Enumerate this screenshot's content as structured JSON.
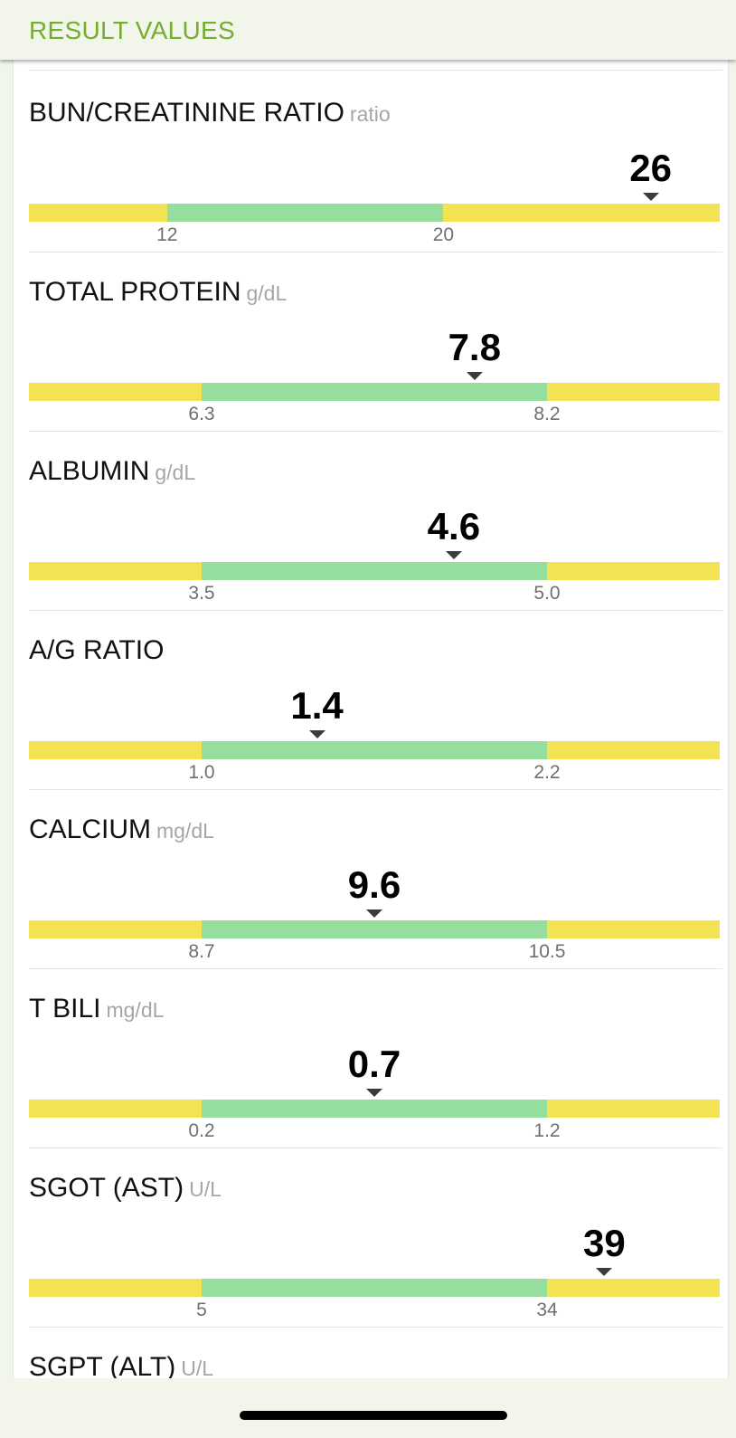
{
  "header": {
    "title": "RESULT VALUES"
  },
  "colors": {
    "accent": "#76ac2f",
    "out_of_range": "#f3e251",
    "in_range": "#95de9e",
    "background": "#f1f5ea"
  },
  "results": [
    {
      "label": "BUN/CREATININE RATIO",
      "unit": "ratio",
      "value": "26",
      "low": "12",
      "high": "20",
      "value_fraction": 0.9
    },
    {
      "label": "TOTAL PROTEIN",
      "unit": "g/dL",
      "value": "7.8",
      "low": "6.3",
      "high": "8.2",
      "value_fraction": 0.645
    },
    {
      "label": "ALBUMIN",
      "unit": "g/dL",
      "value": "4.6",
      "low": "3.5",
      "high": "5.0",
      "value_fraction": 0.615
    },
    {
      "label": "A/G RATIO",
      "unit": "",
      "value": "1.4",
      "low": "1.0",
      "high": "2.2",
      "value_fraction": 0.417
    },
    {
      "label": "CALCIUM",
      "unit": "mg/dL",
      "value": "9.6",
      "low": "8.7",
      "high": "10.5",
      "value_fraction": 0.5
    },
    {
      "label": "T BILI",
      "unit": "mg/dL",
      "value": "0.7",
      "low": "0.2",
      "high": "1.2",
      "value_fraction": 0.5
    },
    {
      "label": "SGOT (AST)",
      "unit": "U/L",
      "value": "39",
      "low": "5",
      "high": "34",
      "value_fraction": 0.833
    },
    {
      "label": "SGPT (ALT)",
      "unit": "U/L",
      "value": "",
      "low": "",
      "high": "",
      "value_fraction": null
    }
  ]
}
